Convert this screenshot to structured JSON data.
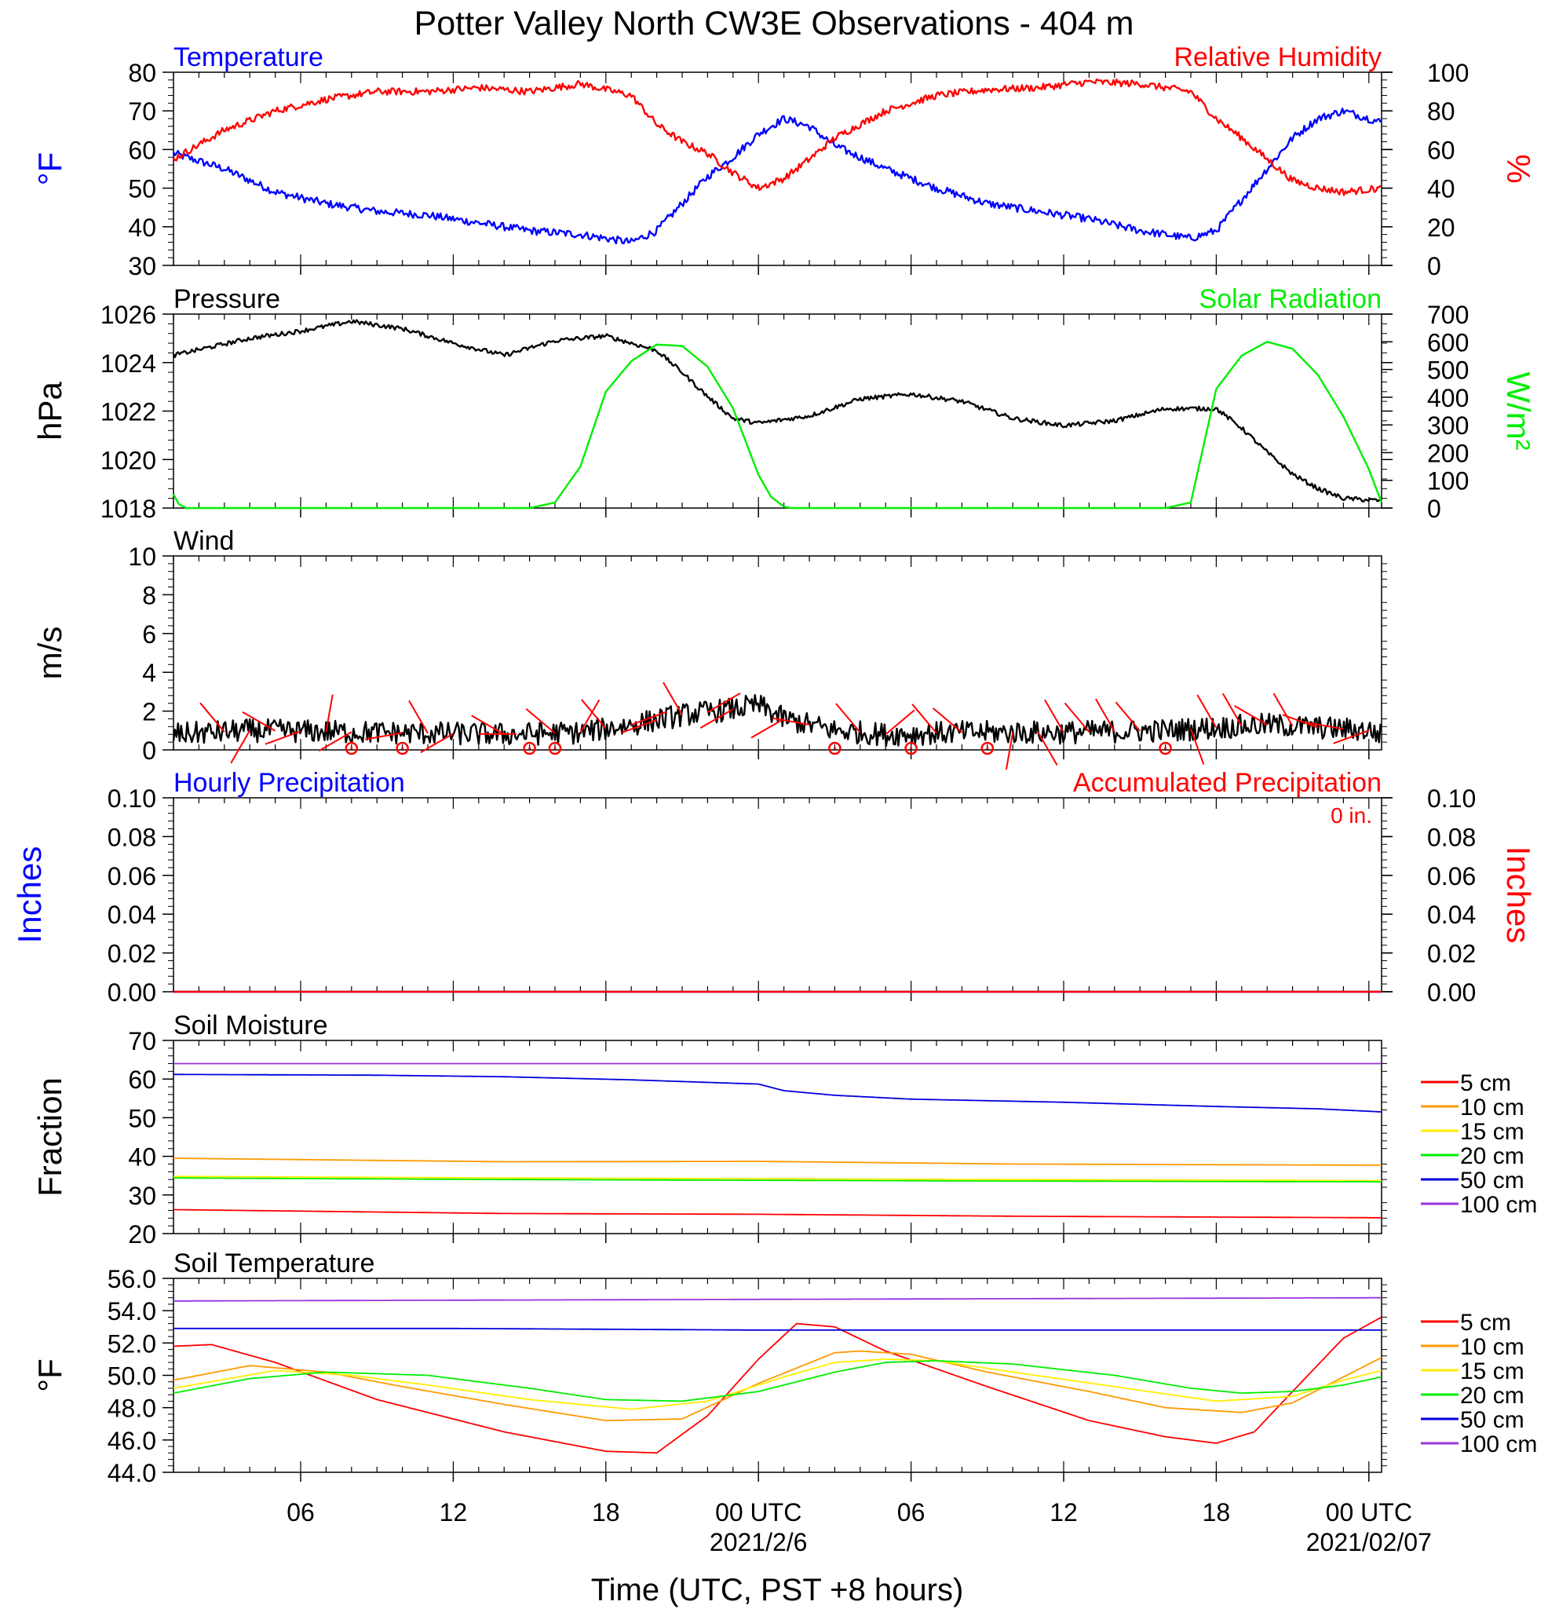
{
  "figure_title": "Potter Valley North CW3E Observations - 404 m",
  "time_axis": {
    "label": "Time (UTC, PST +8 hours)",
    "range_hours": [
      -23.0,
      24.5
    ],
    "tick_hours": [
      -18,
      -12,
      -6,
      0,
      6,
      12,
      18,
      24
    ],
    "tick_labels": [
      "06",
      "12",
      "18",
      "00 UTC",
      "06",
      "12",
      "18",
      "00 UTC"
    ],
    "date_labels": [
      {
        "hour": 0,
        "text": "2021/2/6"
      },
      {
        "hour": 24,
        "text": "2021/02/07"
      }
    ]
  },
  "colors": {
    "temperature": "#0000ff",
    "humidity": "#ff0000",
    "pressure": "#000000",
    "solar": "#00ee00",
    "wind": "#000000",
    "wind_barb": "#ff0000",
    "precip_hourly": "#0000ff",
    "precip_accum": "#ff0000",
    "d5": "#ff0000",
    "d10": "#ff9900",
    "d15": "#ffee00",
    "d20": "#00ee00",
    "d50": "#0000dd",
    "d100": "#9933dd"
  },
  "chart_data": [
    {
      "id": "temp_rh",
      "type": "line",
      "left_title": "Temperature",
      "right_title": "Relative Humidity",
      "ylabel_left": "°F",
      "ylim_left": [
        30,
        80
      ],
      "yticks_left": [
        "30",
        "40",
        "50",
        "60",
        "70",
        "80"
      ],
      "ylabel_right": "%",
      "ylim_right": [
        0,
        100
      ],
      "yticks_right": [
        "0",
        "20",
        "40",
        "60",
        "80",
        "100"
      ],
      "series": [
        {
          "name": "Temperature",
          "axis": "left",
          "color_key": "temperature",
          "noise": 1.0,
          "x": [
            -23,
            -21,
            -19,
            -17,
            -15,
            -13,
            -11,
            -9,
            -7,
            -5,
            -4,
            -3,
            -2,
            -1,
            0,
            1,
            2,
            3,
            5,
            7,
            9,
            11,
            13,
            15,
            17,
            18,
            19,
            20,
            21,
            22,
            23,
            24.5
          ],
          "y": [
            59,
            55,
            49,
            46,
            44,
            43,
            41,
            39,
            38,
            36,
            39,
            46,
            53,
            58,
            64,
            68,
            66,
            61,
            55,
            50,
            46,
            44,
            42,
            39,
            37,
            39,
            47,
            55,
            63,
            68,
            70,
            67
          ]
        },
        {
          "name": "Relative Humidity",
          "axis": "right",
          "color_key": "humidity",
          "noise": 1.8,
          "x": [
            -23,
            -21,
            -19,
            -17,
            -15,
            -13,
            -11,
            -9,
            -7,
            -5,
            -4,
            -3,
            -2,
            -1,
            0,
            1,
            2,
            3,
            5,
            7,
            9,
            11,
            13,
            15,
            17,
            18,
            19,
            20,
            21,
            22,
            23,
            24.5
          ],
          "y": [
            55,
            70,
            80,
            86,
            90,
            90,
            92,
            90,
            94,
            88,
            73,
            64,
            58,
            48,
            40,
            45,
            55,
            66,
            80,
            88,
            91,
            92,
            95,
            94,
            90,
            76,
            66,
            55,
            44,
            40,
            38,
            40
          ]
        }
      ]
    },
    {
      "id": "pressure_solar",
      "type": "line",
      "left_title": "Pressure",
      "right_title": "Solar Radiation",
      "ylabel_left": "hPa",
      "ylim_left": [
        1018,
        1026
      ],
      "yticks_left": [
        "1018",
        "1020",
        "1022",
        "1024",
        "1026"
      ],
      "ylabel_right": "W/m²",
      "ylim_right": [
        0,
        700
      ],
      "yticks_right": [
        "0",
        "100",
        "200",
        "300",
        "400",
        "500",
        "600",
        "700"
      ],
      "series": [
        {
          "name": "Pressure",
          "axis": "left",
          "color_key": "pressure",
          "noise": 0.09,
          "x": [
            -23,
            -20,
            -18,
            -16,
            -14,
            -12,
            -10,
            -8,
            -6,
            -4,
            -3,
            -2,
            -1,
            0,
            2,
            4,
            6,
            8,
            10,
            12,
            14,
            16,
            18,
            19,
            20,
            21,
            22,
            23,
            24.5
          ],
          "y": [
            1024.3,
            1025.0,
            1025.3,
            1025.7,
            1025.4,
            1024.8,
            1024.3,
            1024.9,
            1025.1,
            1024.5,
            1023.6,
            1022.6,
            1021.7,
            1021.5,
            1021.8,
            1022.5,
            1022.7,
            1022.4,
            1021.7,
            1021.4,
            1021.6,
            1022.1,
            1022.1,
            1021.3,
            1020.3,
            1019.4,
            1018.8,
            1018.4,
            1018.3
          ]
        },
        {
          "name": "Solar Radiation",
          "axis": "right",
          "color_key": "solar",
          "noise": 0,
          "x": [
            -23,
            -22.8,
            -22.5,
            -9,
            -8,
            -7,
            -6,
            -5,
            -4,
            -3,
            -2,
            -1,
            0,
            0.5,
            1,
            1.3,
            2,
            16,
            17,
            18,
            19,
            20,
            21,
            22,
            23,
            24,
            24.5
          ],
          "y": [
            50,
            15,
            0,
            0,
            20,
            150,
            420,
            530,
            590,
            585,
            510,
            360,
            120,
            40,
            5,
            0,
            0,
            0,
            20,
            430,
            550,
            600,
            575,
            480,
            330,
            140,
            20
          ]
        }
      ]
    },
    {
      "id": "wind",
      "type": "line",
      "left_title": "Wind",
      "ylabel_left": "m/s",
      "ylim_left": [
        0,
        10
      ],
      "yticks_left": [
        "0",
        "2",
        "4",
        "6",
        "8",
        "10"
      ],
      "series": [
        {
          "name": "Wind",
          "axis": "left",
          "color_key": "wind",
          "noise": 0.6,
          "x": [
            -23,
            -20,
            -15,
            -10,
            -7,
            -5,
            -3,
            -1,
            0,
            1,
            3,
            5,
            8,
            12,
            16,
            20,
            24,
            24.5
          ],
          "y": [
            0.8,
            1.0,
            0.9,
            0.8,
            0.9,
            1.3,
            1.8,
            2.1,
            2.3,
            1.6,
            1.0,
            0.8,
            0.9,
            0.9,
            1.0,
            1.3,
            1.0,
            0.8
          ]
        }
      ],
      "barb_hours": [
        -21,
        -20,
        -19,
        -18,
        -17,
        -16,
        -14,
        -13,
        -12,
        -11,
        -10,
        -8,
        -7,
        -6,
        -5,
        -4,
        -3,
        -2,
        -1,
        1,
        2,
        4,
        5,
        7,
        8,
        10,
        11,
        12,
        13,
        14,
        15,
        17,
        18,
        19,
        20,
        21,
        22,
        23,
        24
      ],
      "barb_dirs": [
        320,
        210,
        300,
        250,
        10,
        240,
        260,
        330,
        240,
        90,
        300,
        310,
        30,
        320,
        70,
        250,
        330,
        60,
        240,
        240,
        280,
        320,
        50,
        320,
        310,
        190,
        150,
        330,
        320,
        330,
        320,
        160,
        330,
        330,
        300,
        330,
        290,
        280,
        250
      ],
      "calm_hours": [
        -16,
        -14,
        -9,
        -8,
        3,
        6,
        9,
        16
      ]
    },
    {
      "id": "precip",
      "type": "line",
      "left_title": "Hourly Precipitation",
      "right_title": "Accumulated Precipitation",
      "note": "0 in.",
      "ylabel_left": "Inches",
      "ylim_left": [
        0,
        0.1
      ],
      "yticks_left": [
        "0.00",
        "0.02",
        "0.04",
        "0.06",
        "0.08",
        "0.10"
      ],
      "ylabel_right": "Inches",
      "ylim_right": [
        0,
        0.1
      ],
      "yticks_right": [
        "0.00",
        "0.02",
        "0.04",
        "0.06",
        "0.08",
        "0.10"
      ],
      "series": [
        {
          "name": "Hourly Precipitation",
          "axis": "left",
          "color_key": "precip_hourly",
          "noise": 0,
          "x": [
            -23,
            24.5
          ],
          "y": [
            0,
            0
          ]
        },
        {
          "name": "Accumulated Precipitation",
          "axis": "right",
          "color_key": "precip_accum",
          "noise": 0,
          "x": [
            -23,
            24.5
          ],
          "y": [
            0,
            0
          ]
        }
      ]
    },
    {
      "id": "soil_moisture",
      "type": "line",
      "left_title": "Soil Moisture",
      "ylabel_left": "Fraction",
      "ylim_left": [
        20,
        70
      ],
      "yticks_left": [
        "20",
        "30",
        "40",
        "50",
        "60",
        "70"
      ],
      "legend": [
        "5 cm",
        "10 cm",
        "15 cm",
        "20 cm",
        "50 cm",
        "100 cm"
      ],
      "series": [
        {
          "name": "5 cm",
          "axis": "left",
          "color_key": "d5",
          "noise": 0,
          "x": [
            -23,
            -10,
            0,
            10,
            24.5
          ],
          "y": [
            26.2,
            25.2,
            25.0,
            24.5,
            24.1
          ]
        },
        {
          "name": "10 cm",
          "axis": "left",
          "color_key": "d10",
          "noise": 0,
          "x": [
            -23,
            -10,
            0,
            10,
            24.5
          ],
          "y": [
            39.5,
            38.6,
            38.7,
            38.0,
            37.7
          ]
        },
        {
          "name": "15 cm",
          "axis": "left",
          "color_key": "d15",
          "noise": 0,
          "x": [
            -23,
            -10,
            0,
            10,
            24.5
          ],
          "y": [
            34.8,
            34.4,
            34.2,
            34.0,
            33.7
          ]
        },
        {
          "name": "20 cm",
          "axis": "left",
          "color_key": "d20",
          "noise": 0,
          "x": [
            -23,
            -10,
            0,
            10,
            24.5
          ],
          "y": [
            34.4,
            34.0,
            33.8,
            33.6,
            33.4
          ]
        },
        {
          "name": "50 cm",
          "axis": "left",
          "color_key": "d50",
          "noise": 0,
          "x": [
            -23,
            -15,
            -10,
            -5,
            0,
            1,
            3,
            6,
            12,
            18,
            22,
            24.5
          ],
          "y": [
            61.2,
            61.0,
            60.6,
            59.8,
            58.7,
            57.0,
            55.8,
            54.8,
            54.0,
            52.9,
            52.3,
            51.5
          ]
        },
        {
          "name": "100 cm",
          "axis": "left",
          "color_key": "d100",
          "noise": 0,
          "x": [
            -23,
            0,
            24.5
          ],
          "y": [
            64.0,
            64.0,
            64.0
          ]
        }
      ]
    },
    {
      "id": "soil_temperature",
      "type": "line",
      "left_title": "Soil Temperature",
      "ylabel_left": "°F",
      "ylim_left": [
        44,
        56
      ],
      "yticks_left": [
        "44.0",
        "46.0",
        "48.0",
        "50.0",
        "52.0",
        "54.0",
        "56.0"
      ],
      "legend": [
        "5 cm",
        "10 cm",
        "15 cm",
        "20 cm",
        "50 cm",
        "100 cm"
      ],
      "series": [
        {
          "name": "5 cm",
          "axis": "left",
          "color_key": "d5",
          "noise": 0,
          "x": [
            -23,
            -21.5,
            -19,
            -15,
            -10,
            -6,
            -4,
            -2,
            0,
            1.5,
            3,
            5,
            9,
            13,
            16,
            18,
            19.5,
            21,
            23,
            24.5
          ],
          "y": [
            51.8,
            51.9,
            50.8,
            48.5,
            46.5,
            45.3,
            45.2,
            47.5,
            51.0,
            53.2,
            53.0,
            51.5,
            49.3,
            47.2,
            46.2,
            45.8,
            46.5,
            49.0,
            52.3,
            53.6
          ]
        },
        {
          "name": "10 cm",
          "axis": "left",
          "color_key": "d10",
          "noise": 0,
          "x": [
            -23,
            -20,
            -17,
            -14,
            -10,
            -6,
            -3,
            0,
            3,
            4,
            6,
            9,
            13,
            16,
            19,
            21,
            23,
            24.5
          ],
          "y": [
            49.7,
            50.6,
            50.2,
            49.3,
            48.2,
            47.2,
            47.3,
            49.5,
            51.4,
            51.5,
            51.3,
            50.2,
            49.0,
            48.0,
            47.7,
            48.3,
            49.9,
            51.1
          ]
        },
        {
          "name": "15 cm",
          "axis": "left",
          "color_key": "d15",
          "noise": 0,
          "x": [
            -23,
            -19,
            -16,
            -13,
            -9,
            -5,
            -2,
            1,
            3,
            5,
            7,
            10,
            14,
            18,
            21,
            23,
            24.5
          ],
          "y": [
            49.2,
            50.3,
            50.0,
            49.4,
            48.5,
            47.9,
            48.4,
            49.9,
            50.8,
            51.0,
            50.9,
            50.2,
            49.3,
            48.4,
            48.7,
            49.7,
            50.3
          ]
        },
        {
          "name": "20 cm",
          "axis": "left",
          "color_key": "d20",
          "noise": 0,
          "x": [
            -23,
            -20,
            -17,
            -13,
            -9,
            -6,
            -3,
            0,
            3,
            5,
            7,
            10,
            14,
            17,
            19,
            21,
            23,
            24.5
          ],
          "y": [
            48.9,
            49.8,
            50.2,
            50.0,
            49.2,
            48.5,
            48.4,
            49.0,
            50.2,
            50.8,
            50.9,
            50.7,
            50.0,
            49.2,
            48.9,
            49.0,
            49.4,
            49.9
          ]
        },
        {
          "name": "50 cm",
          "axis": "left",
          "color_key": "d50",
          "noise": 0,
          "x": [
            -23,
            -12,
            0,
            12,
            24.5
          ],
          "y": [
            52.9,
            52.9,
            52.8,
            52.8,
            52.8
          ]
        },
        {
          "name": "100 cm",
          "axis": "left",
          "color_key": "d100",
          "noise": 0,
          "x": [
            -23,
            0,
            24.5
          ],
          "y": [
            54.6,
            54.7,
            54.8
          ]
        }
      ]
    }
  ]
}
